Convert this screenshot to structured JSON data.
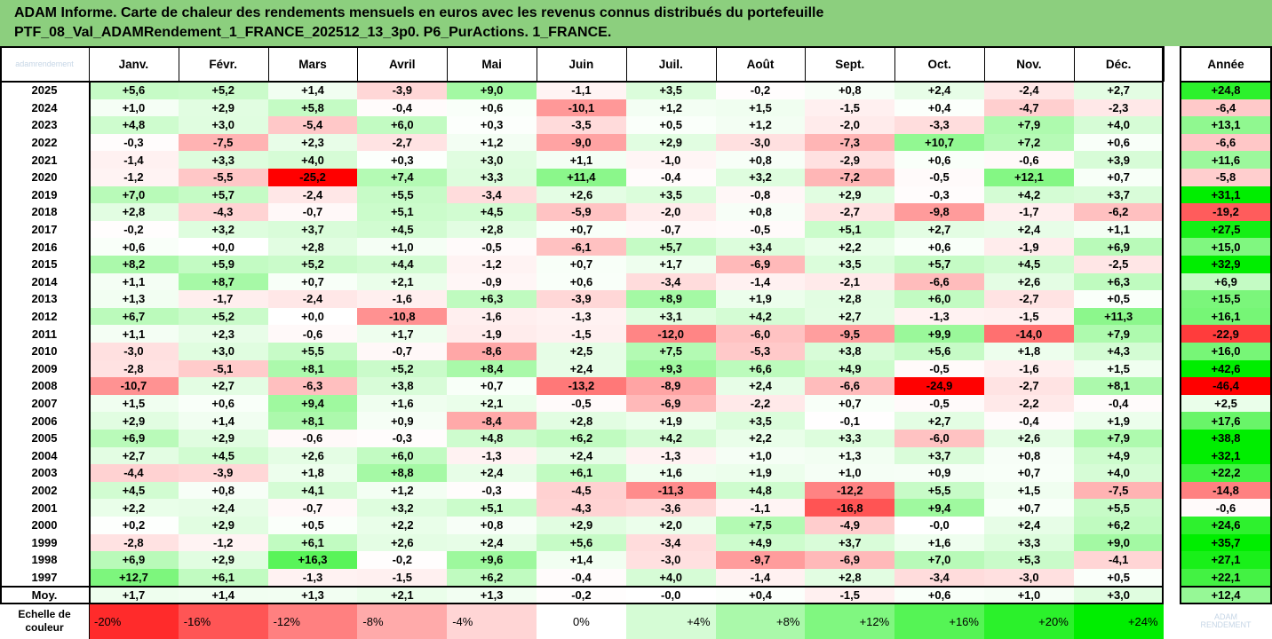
{
  "title_lines": [
    "ADAM Informe. Carte de chaleur des rendements mensuels en euros avec les revenus connus distribués du portefeuille",
    "PTF_08_Val_ADAMRendement_1_FRANCE_202512_13_3p0. P6_PurActions. 1_FRANCE."
  ],
  "corner_logo_text": "adamrendement",
  "bottom_logo_lines": [
    "ADAM",
    "RENDEMENT"
  ],
  "chart_data": {
    "type": "heatmap",
    "title": "ADAM Informe. Carte de chaleur des rendements mensuels en euros avec les revenus connus distribués du portefeuille",
    "subtitle": "PTF_08_Val_ADAMRendement_1_FRANCE_202512_13_3p0. P6_PurActions. 1_FRANCE.",
    "columns": [
      "Janv.",
      "Févr.",
      "Mars",
      "Avril",
      "Mai",
      "Juin",
      "Juil.",
      "Août",
      "Sept.",
      "Oct.",
      "Nov.",
      "Déc."
    ],
    "annual_label": "Année",
    "rows": [
      {
        "year": "2025",
        "values": [
          "+5,6",
          "+5,2",
          "+1,4",
          "-3,9",
          "+9,0",
          "-1,1",
          "+3,5",
          "-0,2",
          "+0,8",
          "+2,4",
          "-2,4",
          "+2,7"
        ],
        "annual": "+24,8"
      },
      {
        "year": "2024",
        "values": [
          "+1,0",
          "+2,9",
          "+5,8",
          "-0,4",
          "+0,6",
          "-10,1",
          "+1,2",
          "+1,5",
          "-1,5",
          "+0,4",
          "-4,7",
          "-2,3"
        ],
        "annual": "-6,4"
      },
      {
        "year": "2023",
        "values": [
          "+4,8",
          "+3,0",
          "-5,4",
          "+6,0",
          "+0,3",
          "-3,5",
          "+0,5",
          "+1,2",
          "-2,0",
          "-3,3",
          "+7,9",
          "+4,0"
        ],
        "annual": "+13,1"
      },
      {
        "year": "2022",
        "values": [
          "-0,3",
          "-7,5",
          "+2,3",
          "-2,7",
          "+1,2",
          "-9,0",
          "+2,9",
          "-3,0",
          "-7,3",
          "+10,7",
          "+7,2",
          "+0,6"
        ],
        "annual": "-6,6"
      },
      {
        "year": "2021",
        "values": [
          "-1,4",
          "+3,3",
          "+4,0",
          "+0,3",
          "+3,0",
          "+1,1",
          "-1,0",
          "+0,8",
          "-2,9",
          "+0,6",
          "-0,6",
          "+3,9"
        ],
        "annual": "+11,6"
      },
      {
        "year": "2020",
        "values": [
          "-1,2",
          "-5,5",
          "-25,2",
          "+7,4",
          "+3,3",
          "+11,4",
          "-0,4",
          "+3,2",
          "-7,2",
          "-0,5",
          "+12,1",
          "+0,7"
        ],
        "annual": "-5,8"
      },
      {
        "year": "2019",
        "values": [
          "+7,0",
          "+5,7",
          "-2,4",
          "+5,5",
          "-3,4",
          "+2,6",
          "+3,5",
          "-0,8",
          "+2,9",
          "-0,3",
          "+4,2",
          "+3,7"
        ],
        "annual": "+31,1"
      },
      {
        "year": "2018",
        "values": [
          "+2,8",
          "-4,3",
          "-0,7",
          "+5,1",
          "+4,5",
          "-5,9",
          "-2,0",
          "+0,8",
          "-2,7",
          "-9,8",
          "-1,7",
          "-6,2"
        ],
        "annual": "-19,2"
      },
      {
        "year": "2017",
        "values": [
          "-0,2",
          "+3,2",
          "+3,7",
          "+4,5",
          "+2,8",
          "+0,7",
          "-0,7",
          "-0,5",
          "+5,1",
          "+2,7",
          "+2,4",
          "+1,1"
        ],
        "annual": "+27,5"
      },
      {
        "year": "2016",
        "values": [
          "+0,6",
          "+0,0",
          "+2,8",
          "+1,0",
          "-0,5",
          "-6,1",
          "+5,7",
          "+3,4",
          "+2,2",
          "+0,6",
          "-1,9",
          "+6,9"
        ],
        "annual": "+15,0"
      },
      {
        "year": "2015",
        "values": [
          "+8,2",
          "+5,9",
          "+5,2",
          "+4,4",
          "-1,2",
          "+0,7",
          "+1,7",
          "-6,9",
          "+3,5",
          "+5,7",
          "+4,5",
          "-2,5"
        ],
        "annual": "+32,9"
      },
      {
        "year": "2014",
        "values": [
          "+1,1",
          "+8,7",
          "+0,7",
          "+2,1",
          "-0,9",
          "+0,6",
          "-3,4",
          "-1,4",
          "-2,1",
          "-6,6",
          "+2,6",
          "+6,3"
        ],
        "annual": "+6,9"
      },
      {
        "year": "2013",
        "values": [
          "+1,3",
          "-1,7",
          "-2,4",
          "-1,6",
          "+6,3",
          "-3,9",
          "+8,9",
          "+1,9",
          "+2,8",
          "+6,0",
          "-2,7",
          "+0,5"
        ],
        "annual": "+15,5"
      },
      {
        "year": "2012",
        "values": [
          "+6,7",
          "+5,2",
          "+0,0",
          "-10,8",
          "-1,6",
          "-1,3",
          "+3,1",
          "+4,2",
          "+2,7",
          "-1,3",
          "-1,5",
          "+11,3"
        ],
        "annual": "+16,1"
      },
      {
        "year": "2011",
        "values": [
          "+1,1",
          "+2,3",
          "-0,6",
          "+1,7",
          "-1,9",
          "-1,5",
          "-12,0",
          "-6,0",
          "-9,5",
          "+9,9",
          "-14,0",
          "+7,9"
        ],
        "annual": "-22,9"
      },
      {
        "year": "2010",
        "values": [
          "-3,0",
          "+3,0",
          "+5,5",
          "-0,7",
          "-8,6",
          "+2,5",
          "+7,5",
          "-5,3",
          "+3,8",
          "+5,6",
          "+1,8",
          "+4,3"
        ],
        "annual": "+16,0"
      },
      {
        "year": "2009",
        "values": [
          "-2,8",
          "-5,1",
          "+8,1",
          "+5,2",
          "+8,4",
          "+2,4",
          "+9,3",
          "+6,6",
          "+4,9",
          "-0,5",
          "-1,6",
          "+1,5"
        ],
        "annual": "+42,6"
      },
      {
        "year": "2008",
        "values": [
          "-10,7",
          "+2,7",
          "-6,3",
          "+3,8",
          "+0,7",
          "-13,2",
          "-8,9",
          "+2,4",
          "-6,6",
          "-24,9",
          "-2,7",
          "+8,1"
        ],
        "annual": "-46,4"
      },
      {
        "year": "2007",
        "values": [
          "+1,5",
          "+0,6",
          "+9,4",
          "+1,6",
          "+2,1",
          "-0,5",
          "-6,9",
          "-2,2",
          "+0,7",
          "-0,5",
          "-2,2",
          "-0,4"
        ],
        "annual": "+2,5"
      },
      {
        "year": "2006",
        "values": [
          "+2,9",
          "+1,4",
          "+8,1",
          "+0,9",
          "-8,4",
          "+2,8",
          "+1,9",
          "+3,5",
          "-0,1",
          "+2,7",
          "-0,4",
          "+1,9"
        ],
        "annual": "+17,6"
      },
      {
        "year": "2005",
        "values": [
          "+6,9",
          "+2,9",
          "-0,6",
          "-0,3",
          "+4,8",
          "+6,2",
          "+4,2",
          "+2,2",
          "+3,3",
          "-6,0",
          "+2,6",
          "+7,9"
        ],
        "annual": "+38,8"
      },
      {
        "year": "2004",
        "values": [
          "+2,7",
          "+4,5",
          "+2,6",
          "+6,0",
          "-1,3",
          "+2,4",
          "-1,3",
          "+1,0",
          "+1,3",
          "+3,7",
          "+0,8",
          "+4,9"
        ],
        "annual": "+32,1"
      },
      {
        "year": "2003",
        "values": [
          "-4,4",
          "-3,9",
          "+1,8",
          "+8,8",
          "+2,4",
          "+6,1",
          "+1,6",
          "+1,9",
          "+1,0",
          "+0,9",
          "+0,7",
          "+4,0"
        ],
        "annual": "+22,2"
      },
      {
        "year": "2002",
        "values": [
          "+4,5",
          "+0,8",
          "+4,1",
          "+1,2",
          "-0,3",
          "-4,5",
          "-11,3",
          "+4,8",
          "-12,2",
          "+5,5",
          "+1,5",
          "-7,5"
        ],
        "annual": "-14,8"
      },
      {
        "year": "2001",
        "values": [
          "+2,2",
          "+2,4",
          "-0,7",
          "+3,2",
          "+5,1",
          "-4,3",
          "-3,6",
          "-1,1",
          "-16,8",
          "+9,4",
          "+0,7",
          "+5,5"
        ],
        "annual": "-0,6"
      },
      {
        "year": "2000",
        "values": [
          "+0,2",
          "+2,9",
          "+0,5",
          "+2,2",
          "+0,8",
          "+2,9",
          "+2,0",
          "+7,5",
          "-4,9",
          "-0,0",
          "+2,4",
          "+6,2"
        ],
        "annual": "+24,6"
      },
      {
        "year": "1999",
        "values": [
          "-2,8",
          "-1,2",
          "+6,1",
          "+2,6",
          "+2,4",
          "+5,6",
          "-3,4",
          "+4,9",
          "+3,7",
          "+1,6",
          "+3,3",
          "+9,0"
        ],
        "annual": "+35,7"
      },
      {
        "year": "1998",
        "values": [
          "+6,9",
          "+2,9",
          "+16,3",
          "-0,2",
          "+9,6",
          "+1,4",
          "-3,0",
          "-9,7",
          "-6,9",
          "+7,0",
          "+5,3",
          "-4,1"
        ],
        "annual": "+27,1"
      },
      {
        "year": "1997",
        "values": [
          "+12,7",
          "+6,1",
          "-1,3",
          "-1,5",
          "+6,2",
          "-0,4",
          "+4,0",
          "-1,4",
          "+2,8",
          "-3,4",
          "-3,0",
          "+0,5"
        ],
        "annual": "+22,1"
      }
    ],
    "average": {
      "label": "Moy.",
      "values": [
        "+1,7",
        "+1,4",
        "+1,3",
        "+2,1",
        "+1,3",
        "-0,2",
        "-0,0",
        "+0,4",
        "-1,5",
        "+0,6",
        "+1,0",
        "+3,0"
      ],
      "annual": "+12,4"
    },
    "color_scale": {
      "label": "Echelle de couleur",
      "steps": [
        "-20%",
        "-16%",
        "-12%",
        "-8%",
        "-4%",
        "0%",
        "+4%",
        "+8%",
        "+12%",
        "+16%",
        "+20%",
        "+24%"
      ],
      "step_values": [
        -20,
        -16,
        -12,
        -8,
        -4,
        0,
        4,
        8,
        12,
        16,
        20,
        24
      ],
      "negative_color": "#ff0000",
      "positive_color": "#00ee00",
      "neutral_color": "#ffffff"
    }
  }
}
